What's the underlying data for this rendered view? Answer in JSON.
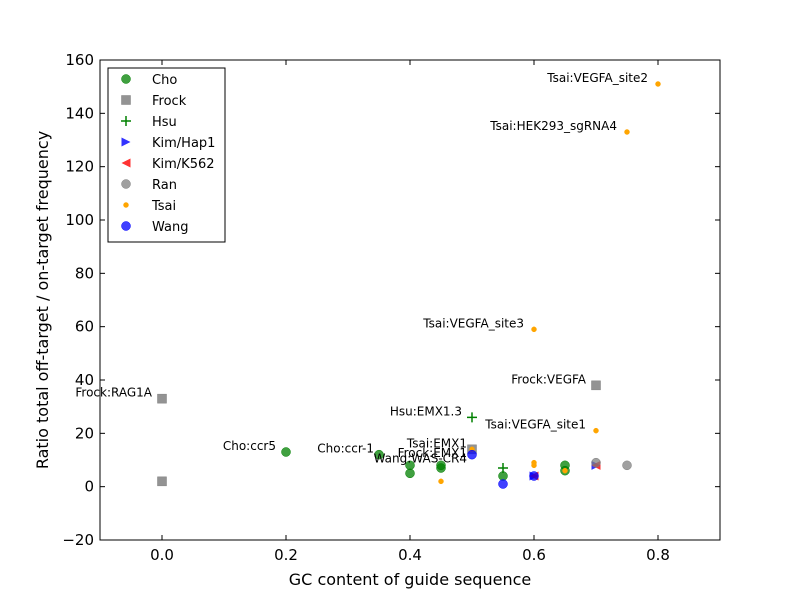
{
  "chart_data": {
    "type": "scatter",
    "xlabel": "GC content of guide sequence",
    "ylabel": "Ratio total off-target / on-target frequency",
    "xlim": [
      -0.1,
      0.9
    ],
    "ylim": [
      -20,
      160
    ],
    "xticks": [
      0.0,
      0.2,
      0.4,
      0.6,
      0.8
    ],
    "xtick_labels": [
      "0.0",
      "0.2",
      "0.4",
      "0.6",
      "0.8"
    ],
    "yticks": [
      -20,
      0,
      20,
      40,
      60,
      80,
      100,
      120,
      140,
      160
    ],
    "ytick_labels": [
      "−20",
      "0",
      "20",
      "40",
      "60",
      "80",
      "100",
      "120",
      "140",
      "160"
    ],
    "grid": false,
    "legend_position": "top-left",
    "series": [
      {
        "name": "Cho",
        "color": "#008000",
        "marker": "circle",
        "points": [
          [
            0.2,
            13
          ],
          [
            0.35,
            12
          ],
          [
            0.4,
            8
          ],
          [
            0.4,
            5
          ],
          [
            0.45,
            8
          ],
          [
            0.45,
            7
          ],
          [
            0.55,
            4
          ],
          [
            0.65,
            8
          ],
          [
            0.65,
            6
          ]
        ]
      },
      {
        "name": "Frock",
        "color": "#808080",
        "marker": "square",
        "points": [
          [
            0.0,
            33
          ],
          [
            0.0,
            2
          ],
          [
            0.5,
            14
          ],
          [
            0.7,
            38
          ]
        ]
      },
      {
        "name": "Hsu",
        "color": "#008000",
        "marker": "plus",
        "points": [
          [
            0.5,
            26
          ],
          [
            0.55,
            7
          ]
        ]
      },
      {
        "name": "Kim/Hap1",
        "color": "#0000ff",
        "marker": "triangle-right",
        "points": [
          [
            0.6,
            4
          ],
          [
            0.7,
            8
          ]
        ]
      },
      {
        "name": "Kim/K562",
        "color": "#ff0000",
        "marker": "triangle-left",
        "points": [
          [
            0.6,
            4
          ],
          [
            0.7,
            8
          ]
        ]
      },
      {
        "name": "Ran",
        "color": "#808080",
        "marker": "circle",
        "points": [
          [
            0.7,
            9
          ],
          [
            0.75,
            8
          ]
        ]
      },
      {
        "name": "Tsai",
        "color": "#ffa500",
        "marker": "point",
        "points": [
          [
            0.8,
            151
          ],
          [
            0.75,
            133
          ],
          [
            0.6,
            59
          ],
          [
            0.7,
            21
          ],
          [
            0.5,
            14
          ],
          [
            0.45,
            2
          ],
          [
            0.6,
            9
          ],
          [
            0.6,
            8
          ],
          [
            0.65,
            6
          ]
        ]
      },
      {
        "name": "Wang",
        "color": "#0000ff",
        "marker": "circle",
        "points": [
          [
            0.5,
            12
          ],
          [
            0.55,
            1
          ],
          [
            0.6,
            4
          ]
        ]
      }
    ],
    "annotations": [
      {
        "text": "Tsai:VEGFA_site2",
        "x": 0.8,
        "y": 151
      },
      {
        "text": "Tsai:HEK293_sgRNA4",
        "x": 0.75,
        "y": 133
      },
      {
        "text": "Tsai:VEGFA_site3",
        "x": 0.6,
        "y": 59
      },
      {
        "text": "Frock:VEGFA",
        "x": 0.7,
        "y": 38
      },
      {
        "text": "Frock:RAG1A",
        "x": 0.0,
        "y": 33
      },
      {
        "text": "Hsu:EMX1.3",
        "x": 0.5,
        "y": 26
      },
      {
        "text": "Tsai:VEGFA_site1",
        "x": 0.7,
        "y": 21
      },
      {
        "text": "Cho:ccr5",
        "x": 0.2,
        "y": 13
      },
      {
        "text": "Cho:ccr-1",
        "x": 0.35,
        "y": 12
      },
      {
        "text": "Wang:WAS-CR4",
        "x": 0.5,
        "y": 12
      },
      {
        "text": "Tsai:EMX1",
        "x": 0.5,
        "y": 14
      },
      {
        "text": "Frock:EMX1",
        "x": 0.5,
        "y": 13
      }
    ]
  }
}
